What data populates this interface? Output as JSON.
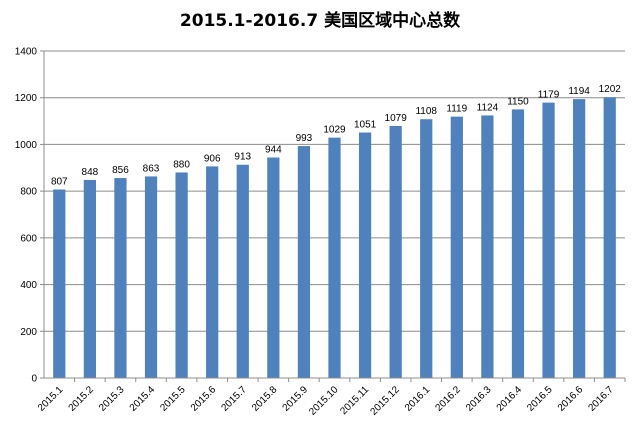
{
  "chart_data": {
    "type": "bar",
    "title": "2015.1-2016.7 美国区域中心总数",
    "categories": [
      "2015.1",
      "2015.2",
      "2015.3",
      "2015.4",
      "2015.5",
      "2015.6",
      "2015.7",
      "2015.8",
      "2015.9",
      "2015.10",
      "2015.11",
      "2015.12",
      "2016.1",
      "2016.2",
      "2016.3",
      "2016.4",
      "2016.5",
      "2016.6",
      "2016.7"
    ],
    "values": [
      807,
      848,
      856,
      863,
      880,
      906,
      913,
      944,
      993,
      1029,
      1051,
      1079,
      1108,
      1119,
      1124,
      1150,
      1179,
      1194,
      1202
    ],
    "ylim": [
      0,
      1400
    ],
    "yticks": [
      0,
      200,
      400,
      600,
      800,
      1000,
      1200,
      1400
    ],
    "grid": true,
    "bar_color": "#4f81bd"
  }
}
